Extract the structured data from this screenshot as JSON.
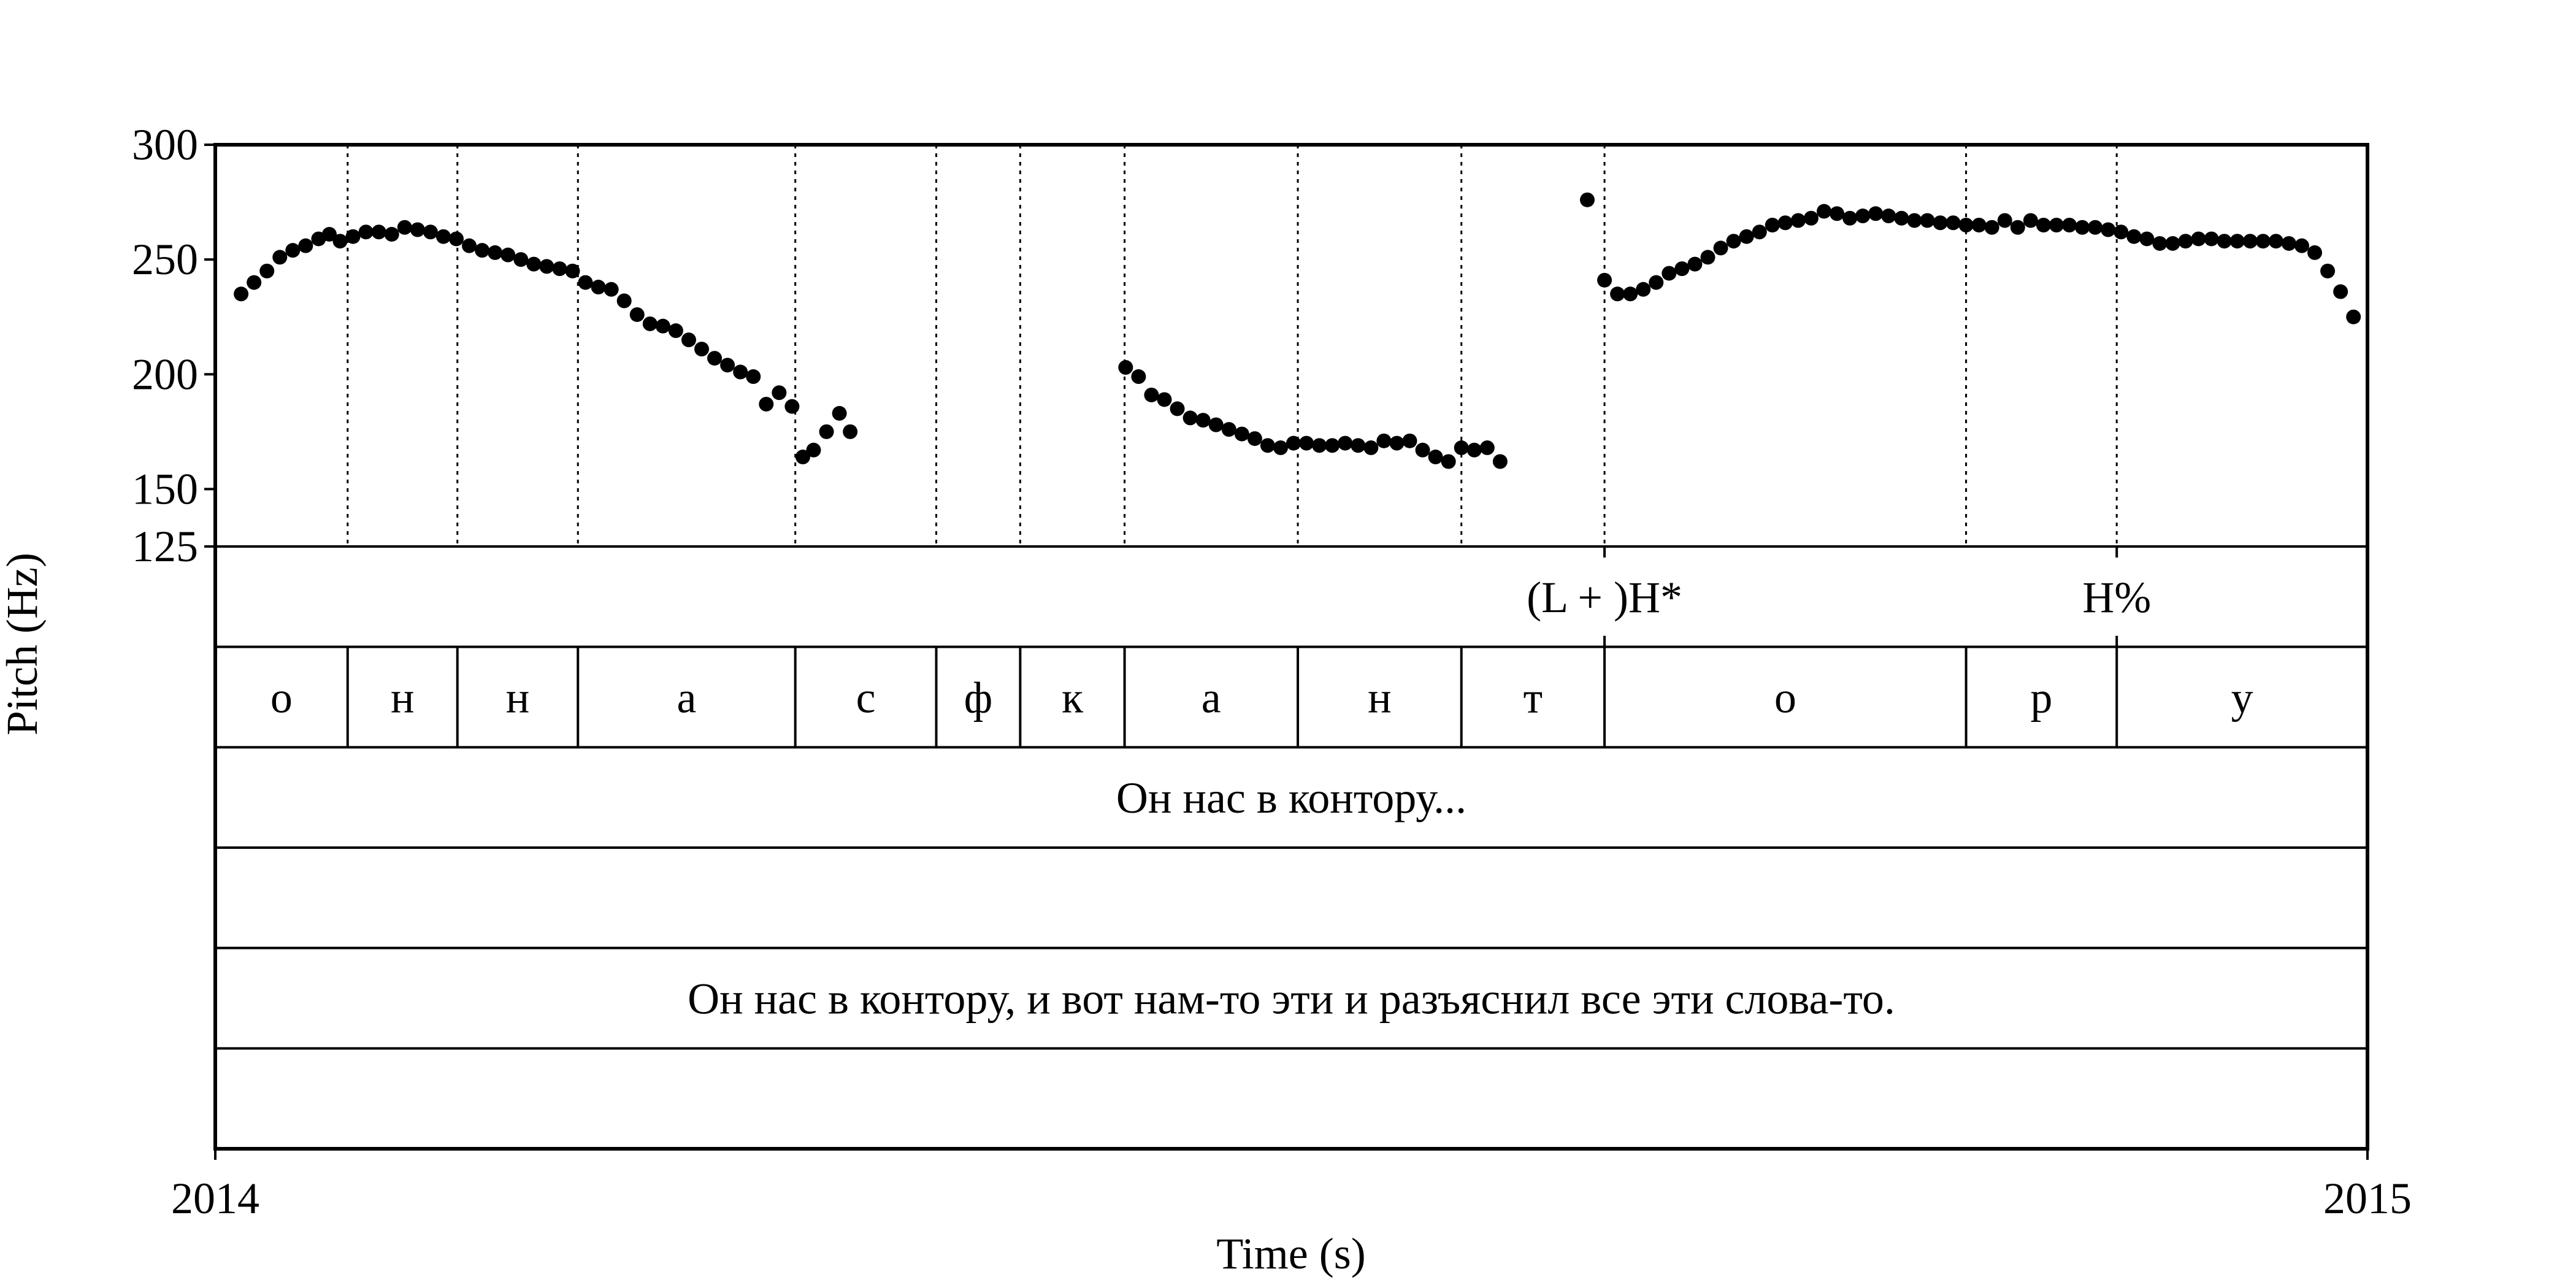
{
  "chart_data": {
    "type": "scatter",
    "ylabel": "Pitch (Hz)",
    "xlabel": "Time (s)",
    "x_tick_labels": [
      "2014",
      "2015"
    ],
    "y_ticks": [
      125,
      150,
      200,
      250,
      300
    ],
    "ylim": [
      125,
      300
    ],
    "xlim": [
      0,
      1
    ],
    "grid": false,
    "boundaries": [
      0.0615,
      0.1125,
      0.1685,
      0.2695,
      0.335,
      0.374,
      0.4225,
      0.503,
      0.579,
      0.6455,
      0.8135,
      0.8835
    ],
    "points": [
      [
        0.012,
        235
      ],
      [
        0.018,
        240
      ],
      [
        0.024,
        245
      ],
      [
        0.03,
        251
      ],
      [
        0.036,
        254
      ],
      [
        0.042,
        256
      ],
      [
        0.048,
        259
      ],
      [
        0.053,
        261
      ],
      [
        0.058,
        258
      ],
      [
        0.064,
        260
      ],
      [
        0.07,
        262
      ],
      [
        0.076,
        262
      ],
      [
        0.082,
        261
      ],
      [
        0.088,
        264
      ],
      [
        0.094,
        263
      ],
      [
        0.1,
        262
      ],
      [
        0.106,
        260
      ],
      [
        0.112,
        259
      ],
      [
        0.118,
        256
      ],
      [
        0.124,
        254
      ],
      [
        0.13,
        253
      ],
      [
        0.136,
        252
      ],
      [
        0.142,
        250
      ],
      [
        0.148,
        248
      ],
      [
        0.154,
        247
      ],
      [
        0.16,
        246
      ],
      [
        0.166,
        245
      ],
      [
        0.172,
        240
      ],
      [
        0.178,
        238
      ],
      [
        0.184,
        237
      ],
      [
        0.19,
        232
      ],
      [
        0.196,
        226
      ],
      [
        0.202,
        222
      ],
      [
        0.208,
        221
      ],
      [
        0.214,
        219
      ],
      [
        0.22,
        215
      ],
      [
        0.226,
        211
      ],
      [
        0.232,
        207
      ],
      [
        0.238,
        204
      ],
      [
        0.244,
        201
      ],
      [
        0.25,
        199
      ],
      [
        0.256,
        187
      ],
      [
        0.262,
        192
      ],
      [
        0.268,
        186
      ],
      [
        0.273,
        164
      ],
      [
        0.278,
        167
      ],
      [
        0.284,
        175
      ],
      [
        0.29,
        183
      ],
      [
        0.295,
        175
      ],
      [
        0.423,
        203
      ],
      [
        0.429,
        199
      ],
      [
        0.435,
        191
      ],
      [
        0.441,
        189
      ],
      [
        0.447,
        185
      ],
      [
        0.453,
        181
      ],
      [
        0.459,
        180
      ],
      [
        0.465,
        178
      ],
      [
        0.471,
        176
      ],
      [
        0.477,
        174
      ],
      [
        0.483,
        172
      ],
      [
        0.489,
        169
      ],
      [
        0.495,
        168
      ],
      [
        0.501,
        170
      ],
      [
        0.507,
        170
      ],
      [
        0.513,
        169
      ],
      [
        0.519,
        169
      ],
      [
        0.525,
        170
      ],
      [
        0.531,
        169
      ],
      [
        0.537,
        168
      ],
      [
        0.543,
        171
      ],
      [
        0.549,
        170
      ],
      [
        0.555,
        171
      ],
      [
        0.561,
        167
      ],
      [
        0.567,
        164
      ],
      [
        0.573,
        162
      ],
      [
        0.579,
        168
      ],
      [
        0.585,
        167
      ],
      [
        0.591,
        168
      ],
      [
        0.597,
        162
      ],
      [
        0.6375,
        276
      ],
      [
        0.6455,
        241
      ],
      [
        0.6515,
        235
      ],
      [
        0.6575,
        235
      ],
      [
        0.6635,
        237
      ],
      [
        0.6695,
        240
      ],
      [
        0.6755,
        244
      ],
      [
        0.6815,
        246
      ],
      [
        0.6875,
        248
      ],
      [
        0.6935,
        251
      ],
      [
        0.6995,
        255
      ],
      [
        0.7055,
        258
      ],
      [
        0.7115,
        260
      ],
      [
        0.7175,
        262
      ],
      [
        0.7235,
        265
      ],
      [
        0.7295,
        266
      ],
      [
        0.7355,
        267
      ],
      [
        0.7415,
        268
      ],
      [
        0.7475,
        271
      ],
      [
        0.7535,
        270
      ],
      [
        0.7595,
        268
      ],
      [
        0.7655,
        269
      ],
      [
        0.7715,
        270
      ],
      [
        0.7775,
        269
      ],
      [
        0.7835,
        268
      ],
      [
        0.7895,
        267
      ],
      [
        0.7955,
        267
      ],
      [
        0.8015,
        266
      ],
      [
        0.8075,
        266
      ],
      [
        0.8135,
        265
      ],
      [
        0.8195,
        265
      ],
      [
        0.8255,
        264
      ],
      [
        0.8315,
        267
      ],
      [
        0.8375,
        264
      ],
      [
        0.8435,
        267
      ],
      [
        0.8495,
        265
      ],
      [
        0.8555,
        265
      ],
      [
        0.8615,
        265
      ],
      [
        0.8675,
        264
      ],
      [
        0.8735,
        264
      ],
      [
        0.8795,
        263
      ],
      [
        0.8855,
        262
      ],
      [
        0.8915,
        260
      ],
      [
        0.8975,
        259
      ],
      [
        0.9035,
        257
      ],
      [
        0.9095,
        257
      ],
      [
        0.9155,
        258
      ],
      [
        0.9215,
        259
      ],
      [
        0.9275,
        259
      ],
      [
        0.9335,
        258
      ],
      [
        0.9395,
        258
      ],
      [
        0.9455,
        258
      ],
      [
        0.9515,
        258
      ],
      [
        0.9575,
        258
      ],
      [
        0.9635,
        257
      ],
      [
        0.9695,
        256
      ],
      [
        0.9755,
        253
      ],
      [
        0.9815,
        245
      ],
      [
        0.9875,
        236
      ],
      [
        0.9935,
        225
      ]
    ],
    "tiers": [
      {
        "items": [
          {
            "text": "(L + )H*",
            "x": 0.6455
          },
          {
            "text": "H%",
            "x": 0.8835
          }
        ]
      },
      {
        "intervals": [
          {
            "text": "о",
            "start": 0.0,
            "end": 0.0615
          },
          {
            "text": "н",
            "start": 0.0615,
            "end": 0.1125
          },
          {
            "text": "н",
            "start": 0.1125,
            "end": 0.1685
          },
          {
            "text": "а",
            "start": 0.1685,
            "end": 0.2695
          },
          {
            "text": "с",
            "start": 0.2695,
            "end": 0.335
          },
          {
            "text": "ф",
            "start": 0.335,
            "end": 0.374
          },
          {
            "text": "к",
            "start": 0.374,
            "end": 0.4225
          },
          {
            "text": "а",
            "start": 0.4225,
            "end": 0.503
          },
          {
            "text": "н",
            "start": 0.503,
            "end": 0.579
          },
          {
            "text": "т",
            "start": 0.579,
            "end": 0.6455
          },
          {
            "text": "о",
            "start": 0.6455,
            "end": 0.8135
          },
          {
            "text": "р",
            "start": 0.8135,
            "end": 0.8835
          },
          {
            "text": "у",
            "start": 0.8835,
            "end": 1.0
          }
        ]
      },
      {
        "text": "Он нас в контору..."
      },
      {
        "text": ""
      },
      {
        "text": "Он нас в контору, и вот нам-то эти и разъяснил все эти слова-то."
      },
      {
        "text": ""
      }
    ]
  }
}
